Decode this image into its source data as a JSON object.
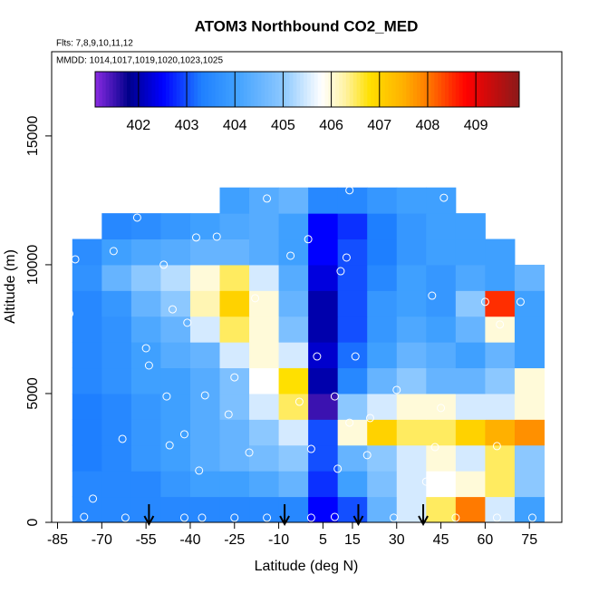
{
  "chart_data": {
    "type": "heatmap",
    "title": "ATOM3 Northbound CO2_MED",
    "subtitle": "Flts: 7,8,9,10,11,12",
    "annotation": "MMDD: 1014,1017,1019,1020,1023,1025",
    "x_label": "Latitude (deg N)",
    "y_label": "Altitude (m)",
    "xlim": [
      -87,
      86
    ],
    "ylim": [
      0,
      18270
    ],
    "xticks": [
      -85,
      -70,
      -55,
      -40,
      -25,
      -10,
      5,
      15,
      30,
      45,
      60,
      75
    ],
    "yticks": [
      0,
      5000,
      10000,
      15000
    ],
    "zlim": [
      401.1,
      409.9
    ],
    "zticks": [
      402,
      403,
      404,
      405,
      406,
      407,
      408,
      409
    ],
    "colorscale": [
      [
        401.1,
        "#8a2be2"
      ],
      [
        401.8,
        "#00008b"
      ],
      [
        402.5,
        "#0000ff"
      ],
      [
        403.3,
        "#1e7fff"
      ],
      [
        404.0,
        "#3fa0ff"
      ],
      [
        405.0,
        "#8cc8ff"
      ],
      [
        405.8,
        "#ffffff"
      ],
      [
        406.3,
        "#fff2a0"
      ],
      [
        406.8,
        "#ffe000"
      ],
      [
        407.5,
        "#ffb000"
      ],
      [
        408.0,
        "#ff7a00"
      ],
      [
        408.8,
        "#ff0000"
      ],
      [
        409.9,
        "#8b1a1a"
      ]
    ],
    "x_bins": [
      -80,
      -70,
      -60,
      -50,
      -40,
      -30,
      -20,
      -10,
      0,
      10,
      20,
      30,
      40,
      50,
      60,
      70,
      80
    ],
    "y_bins": [
      0,
      1000,
      2000,
      3000,
      4000,
      5000,
      6000,
      7000,
      8000,
      9000,
      10000,
      11000,
      12000,
      13000
    ],
    "z": [
      [
        403.5,
        403.5,
        403.5,
        403.5,
        403.5,
        403.5,
        403.5,
        403.5,
        402.5,
        403,
        404.5,
        405.5,
        406.5,
        408,
        405.5,
        404
      ],
      [
        403.5,
        403.5,
        403.5,
        403.8,
        404,
        404,
        404.2,
        404.5,
        402.8,
        404,
        404.8,
        405.5,
        405.8,
        406,
        406.5,
        405
      ],
      [
        403.3,
        403.5,
        403.8,
        404,
        404.3,
        404.5,
        404.7,
        405,
        403,
        404.5,
        405,
        405.5,
        406,
        405.5,
        406.5,
        405
      ],
      [
        403.3,
        403.5,
        403.8,
        404,
        404.3,
        404.5,
        405,
        405.5,
        403,
        406,
        407,
        406.5,
        406.5,
        407,
        407.5,
        407.8
      ],
      [
        403.3,
        403.5,
        403.8,
        404,
        404.3,
        404.8,
        405.5,
        406.5,
        401.5,
        405,
        405.5,
        406,
        406,
        405.5,
        405.5,
        406
      ],
      [
        403.5,
        403.7,
        404,
        404,
        404.3,
        404.8,
        405.8,
        406.8,
        402,
        403.5,
        404.5,
        405,
        404.5,
        404.5,
        405,
        406
      ],
      [
        403.5,
        403.7,
        404,
        404.3,
        404.5,
        405.5,
        406,
        405.5,
        402.2,
        403.2,
        404,
        404.5,
        404.3,
        404,
        404.5,
        404
      ],
      [
        403.5,
        403.7,
        404.2,
        404.5,
        405.5,
        406.5,
        406,
        404.8,
        402,
        403,
        403.8,
        404.2,
        404,
        404.5,
        406,
        404
      ],
      [
        403.5,
        403.8,
        404.5,
        405,
        406.2,
        407,
        406,
        404.5,
        402,
        403,
        403.8,
        404,
        403.8,
        405,
        408.5,
        404
      ],
      [
        403.7,
        404.5,
        405,
        405.3,
        406,
        406.5,
        405.5,
        404.3,
        402.3,
        403,
        403.5,
        404,
        403.8,
        404.2,
        404,
        404.5
      ],
      [
        403.6,
        404,
        404.2,
        404.3,
        404.5,
        404.5,
        404.3,
        404,
        402.5,
        403,
        403.3,
        403.8,
        404,
        404,
        404,
        null
      ],
      [
        null,
        403.5,
        403.6,
        403.8,
        404,
        404.2,
        404.3,
        404,
        402.5,
        402.8,
        403.3,
        403.8,
        404,
        404,
        null,
        null
      ],
      [
        null,
        null,
        null,
        null,
        null,
        404,
        404.3,
        404.5,
        403.5,
        403.5,
        403.8,
        404,
        404,
        null,
        null,
        null
      ]
    ],
    "samples": {
      "lat": [
        -58,
        -14,
        14,
        46,
        -38,
        -31,
        -66,
        -6,
        13,
        0,
        -49,
        -79,
        11,
        -18,
        -46,
        -41,
        -81,
        42,
        60,
        72,
        65,
        -55,
        -54,
        3,
        16,
        -25,
        -3,
        30,
        -48,
        -35,
        9,
        -27,
        14,
        21,
        45,
        -42,
        -63,
        -47,
        -20,
        1,
        20,
        43,
        64,
        -37,
        10,
        40,
        -73,
        -76,
        -62,
        -42,
        -36,
        -25,
        -14,
        1,
        9,
        29,
        50,
        64,
        76
      ],
      "alt": [
        11830,
        12570,
        12890,
        12600,
        11060,
        11090,
        10530,
        10350,
        10280,
        10990,
        10000,
        10210,
        9750,
        8700,
        8270,
        7750,
        8100,
        8800,
        8560,
        8560,
        7680,
        6760,
        6090,
        6440,
        6440,
        5630,
        4680,
        5140,
        4890,
        4930,
        4890,
        4190,
        3870,
        4050,
        4440,
        3420,
        3240,
        2990,
        2710,
        2850,
        2610,
        2920,
        2960,
        2010,
        2080,
        1580,
        920,
        210,
        180,
        180,
        180,
        180,
        180,
        180,
        210,
        180,
        180,
        180,
        180
      ]
    },
    "arrow_lats": [
      -54,
      -8,
      17,
      39
    ]
  }
}
